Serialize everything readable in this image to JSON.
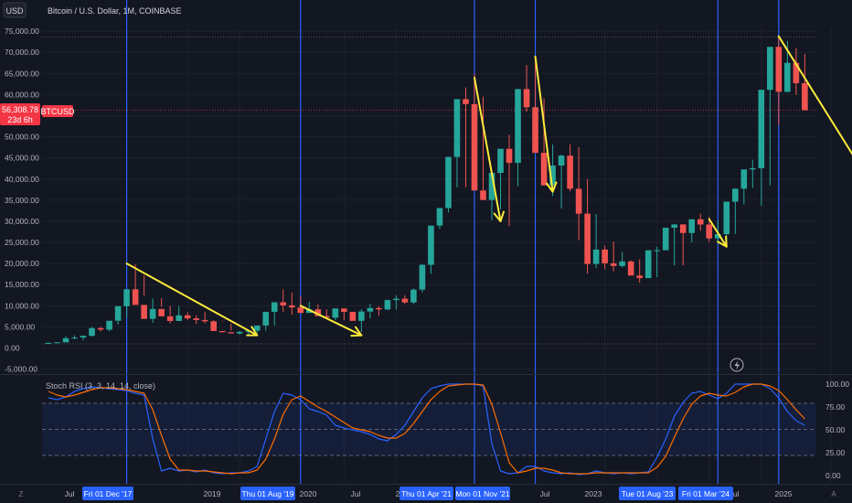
{
  "currency_button": "USD",
  "price_chart_title": "Bitcoin / U.S. Dollar, 1M, COINBASE",
  "indicator_title": "Stoch RSI (3, 3, 14, 14, close)",
  "price_tag": {
    "price": "56,308.78",
    "countdown": "23d 6h",
    "symbol": "BTCUSD"
  },
  "price_axis_labels": [
    "75,000.00",
    "70,000.00",
    "65,000.00",
    "60,000.00",
    "55,000.00",
    "50,000.00",
    "45,000.00",
    "40,000.00",
    "35,000.00",
    "30,000.00",
    "25,000.00",
    "20,000.00",
    "15,000.00",
    "10,000.00",
    "5,000.00",
    "0.00",
    "-5,000.00"
  ],
  "rsi_axis_labels": [
    "100.00",
    "75.00",
    "50.00",
    "25.00",
    "0.00"
  ],
  "time_axis_labels": [
    "Jul",
    "2019",
    "2020",
    "Jul",
    "Jul",
    "2023",
    "Jul"
  ],
  "highlighted_dates": [
    "Fri 01 Dec '17",
    "Thu 01 Aug '19",
    "Thu 01 Apr '21",
    "Mon 01 Nov '21",
    "Tue 01 Aug '23",
    "Fri 01 Mar '24"
  ],
  "time_axis_right_labels": [
    "Jul",
    "2025"
  ],
  "time_axis_clipped_label": "2",
  "corner_left": "Z",
  "corner_right": "A",
  "colors": {
    "up": "#26a69a",
    "down": "#ef5350",
    "accent": "#2962ff",
    "arrow": "#ffeb3b",
    "k_line": "#2962ff",
    "d_line": "#ff6d00",
    "price_tag": "#f23645"
  },
  "chart_data": {
    "type": "candlestick",
    "start": "2017-03",
    "candles": [
      [
        1190,
        1200
      ],
      [
        1200,
        1350
      ],
      [
        1350,
        2300
      ],
      [
        2300,
        2480
      ],
      [
        2480,
        2880
      ],
      [
        2880,
        4700
      ],
      [
        4700,
        4340
      ],
      [
        4340,
        6450
      ],
      [
        6450,
        9900
      ],
      [
        9900,
        13900
      ],
      [
        13900,
        10200
      ],
      [
        10200,
        6900
      ],
      [
        6900,
        9240
      ],
      [
        9240,
        7500
      ],
      [
        7500,
        6400
      ],
      [
        6400,
        7730
      ],
      [
        7730,
        7020
      ],
      [
        7020,
        6630
      ],
      [
        6630,
        6320
      ],
      [
        6320,
        4020
      ],
      [
        4020,
        3740
      ],
      [
        3740,
        3440
      ],
      [
        3440,
        3830
      ],
      [
        3830,
        4100
      ],
      [
        4100,
        5320
      ],
      [
        5320,
        8570
      ],
      [
        8570,
        10820
      ],
      [
        10820,
        10090
      ],
      [
        10090,
        9600
      ],
      [
        9600,
        8300
      ],
      [
        8300,
        9150
      ],
      [
        9150,
        7550
      ],
      [
        7550,
        7190
      ],
      [
        7190,
        9350
      ],
      [
        9350,
        8560
      ],
      [
        8560,
        6420
      ],
      [
        6420,
        8630
      ],
      [
        8630,
        9460
      ],
      [
        9460,
        9140
      ],
      [
        9140,
        11350
      ],
      [
        11350,
        11680
      ],
      [
        11680,
        10780
      ],
      [
        10780,
        13810
      ],
      [
        13810,
        19700
      ],
      [
        19700,
        28990
      ],
      [
        28990,
        33140
      ],
      [
        33140,
        45240
      ],
      [
        45240,
        58920
      ],
      [
        58920,
        57750
      ],
      [
        57750,
        37300
      ],
      [
        37300,
        35040
      ],
      [
        35040,
        41460
      ],
      [
        41460,
        47160
      ],
      [
        47160,
        43830
      ],
      [
        43830,
        61300
      ],
      [
        61300,
        57000
      ],
      [
        57000,
        46200
      ],
      [
        46200,
        38500
      ],
      [
        38500,
        43200
      ],
      [
        43200,
        45540
      ],
      [
        45540,
        37700
      ],
      [
        37700,
        31800
      ],
      [
        31800,
        19900
      ],
      [
        19900,
        23300
      ],
      [
        23300,
        20050
      ],
      [
        20050,
        19420
      ],
      [
        19420,
        20490
      ],
      [
        20490,
        17160
      ],
      [
        17160,
        16550
      ],
      [
        16550,
        23130
      ],
      [
        23130,
        23150
      ],
      [
        23150,
        28480
      ],
      [
        28480,
        29250
      ],
      [
        29250,
        27220
      ],
      [
        27220,
        30470
      ],
      [
        30470,
        29230
      ],
      [
        29230,
        25940
      ],
      [
        25940,
        26960
      ],
      [
        26960,
        34640
      ],
      [
        34640,
        37720
      ],
      [
        37720,
        42280
      ],
      [
        42280,
        42580
      ],
      [
        42580,
        61130
      ],
      [
        61130,
        71300
      ],
      [
        71300,
        60660
      ],
      [
        60660,
        67500
      ],
      [
        67500,
        62700
      ],
      [
        62700,
        56300
      ]
    ],
    "highs": [
      1290,
      1350,
      2800,
      2980,
      2950,
      4980,
      4980,
      4980,
      7900,
      11800,
      19800,
      17200,
      11700,
      11780,
      9960,
      9990,
      8500,
      7780,
      8500,
      6580,
      6480,
      5750,
      3980,
      4190,
      4110,
      5470,
      8990,
      13880,
      13130,
      12320,
      10950,
      10370,
      9180,
      7470,
      9380,
      8430,
      9200,
      10500,
      9840,
      11450,
      12450,
      12480,
      14100,
      19800,
      19900,
      29300,
      41950,
      58400,
      61700,
      64900,
      59500,
      41300,
      42600,
      50500,
      52900,
      67000,
      69000,
      59100,
      48200,
      45800,
      48200,
      47500,
      40000,
      31700,
      24200,
      25200,
      22800,
      20750,
      21000,
      16550,
      23950,
      25250,
      28500,
      29320,
      29950,
      31800,
      31080,
      30200,
      28200,
      35900,
      38500,
      44600,
      48900,
      64000,
      73800,
      72700,
      71000,
      69600
    ],
    "lows": [
      1000,
      1300,
      1330,
      2080,
      1830,
      2670,
      3900,
      3950,
      5540,
      7200,
      10300,
      12400,
      5950,
      9760,
      5880,
      6400,
      6600,
      5700,
      5850,
      6000,
      6320,
      4120,
      3140,
      3250,
      3400,
      4080,
      5300,
      8550,
      7860,
      9570,
      9050,
      8940,
      7220,
      6580,
      6550,
      6480,
      3800,
      7000,
      7700,
      8960,
      9130,
      10450,
      10390,
      13100,
      17550,
      28180,
      32100,
      38050,
      38000,
      39700,
      37150,
      30300,
      32800,
      28900,
      38300,
      56000,
      53250,
      43930,
      35950,
      33000,
      37100,
      25500,
      17600,
      19000,
      18700,
      18150,
      19100,
      18200,
      15480,
      16500,
      16800,
      23800,
      19550,
      19600,
      25000,
      27750,
      25100,
      24980,
      24800,
      27000,
      34000,
      37900,
      33700,
      38500,
      52800,
      60500,
      59950,
      56300
    ],
    "value_range": [
      -5000,
      75000
    ],
    "x_ticks": [
      "Jul",
      "2019",
      "2020",
      "Jul",
      "Jul",
      "2023",
      "Jul"
    ],
    "highlighted_dates": [
      "Fri 01 Dec '17",
      "Thu 01 Aug '19",
      "Thu 01 Apr '21",
      "Mon 01 Nov '21",
      "Tue 01 Aug '23",
      "Fri 01 Mar '24"
    ],
    "last_price": 56308.78,
    "arrows": [
      {
        "from": [
          "2017-12",
          20000
        ],
        "to": [
          "2019-03",
          3000
        ]
      },
      {
        "from": [
          "2019-08",
          10000
        ],
        "to": [
          "2020-03",
          3000
        ]
      },
      {
        "from": [
          "2021-04",
          64000
        ],
        "to": [
          "2021-07",
          30000
        ]
      },
      {
        "from": [
          "2021-11",
          69000
        ],
        "to": [
          "2022-01",
          37000
        ]
      },
      {
        "from": [
          "2023-07",
          30500
        ],
        "to": [
          "2023-09",
          24000
        ]
      },
      {
        "from": [
          "2024-03",
          73800
        ],
        "to": [
          "2025-04",
          31000
        ]
      }
    ],
    "stoch_rsi": {
      "range": [
        0,
        100
      ],
      "levels": [
        80,
        50,
        20
      ],
      "series": [
        {
          "name": "K",
          "values": [
            85,
            83,
            86,
            92,
            95,
            97,
            96,
            95,
            94,
            93,
            90,
            88,
            40,
            5,
            8,
            5,
            6,
            4,
            6,
            3,
            2,
            3,
            3,
            5,
            10,
            40,
            70,
            90,
            88,
            83,
            73,
            70,
            66,
            55,
            52,
            50,
            48,
            45,
            40,
            38,
            45,
            55,
            70,
            85,
            95,
            98,
            100,
            100,
            100,
            100,
            98,
            35,
            5,
            2,
            3,
            10,
            10,
            5,
            3,
            2,
            3,
            1,
            2,
            5,
            3,
            2,
            3,
            2,
            3,
            4,
            20,
            40,
            65,
            80,
            90,
            92,
            88,
            84,
            90,
            100,
            100,
            100,
            100,
            95,
            85,
            70,
            60,
            55
          ]
        },
        {
          "name": "D",
          "values": [
            92,
            88,
            86,
            88,
            91,
            94,
            96,
            96,
            95,
            94,
            92,
            90,
            72,
            44,
            18,
            6,
            6,
            5,
            5,
            4,
            3,
            2,
            3,
            3,
            6,
            18,
            40,
            67,
            83,
            87,
            81,
            75,
            70,
            64,
            58,
            52,
            50,
            48,
            44,
            41,
            41,
            46,
            57,
            70,
            83,
            92,
            98,
            99,
            100,
            100,
            99,
            78,
            47,
            14,
            3,
            5,
            8,
            8,
            6,
            3,
            2,
            2,
            2,
            3,
            3,
            3,
            3,
            3,
            3,
            3,
            9,
            21,
            42,
            62,
            78,
            87,
            90,
            88,
            87,
            91,
            97,
            100,
            100,
            98,
            93,
            83,
            72,
            62
          ]
        }
      ]
    }
  }
}
